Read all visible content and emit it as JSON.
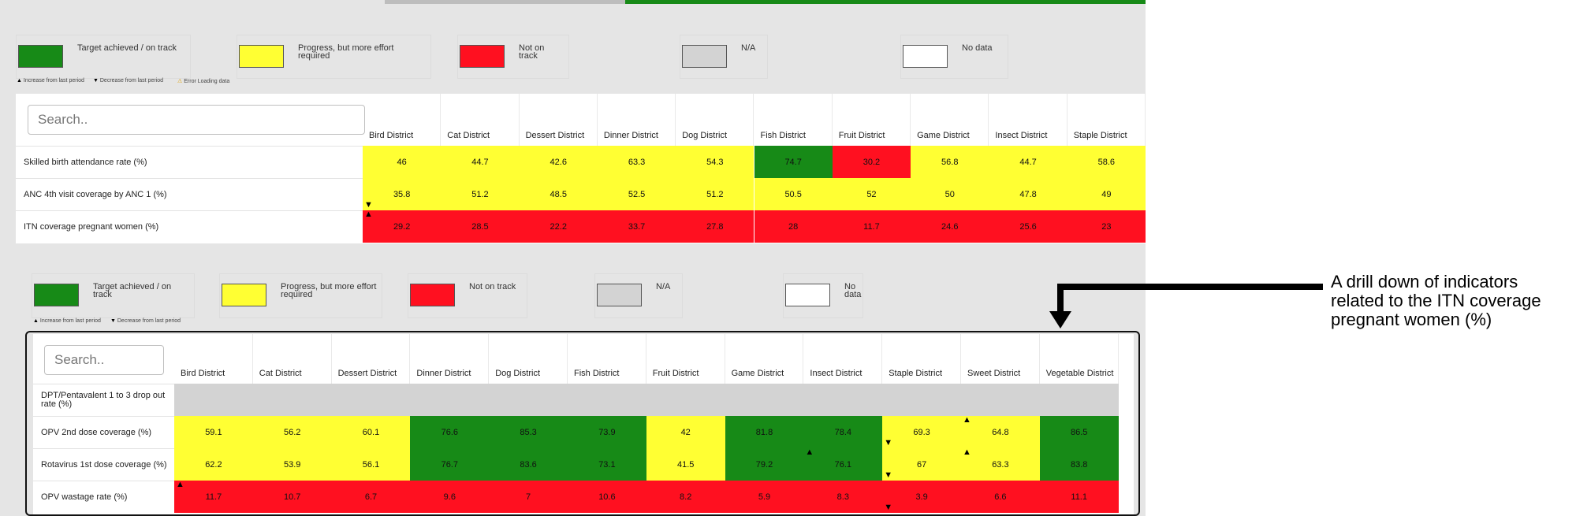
{
  "colors": {
    "green": "#178a17",
    "yellow": "#ffff33",
    "red": "#ff1020",
    "na": "#d3d3d3",
    "nodata": "#ffffff"
  },
  "legend1": {
    "items": [
      {
        "label": "Target achieved / on track",
        "color": "green"
      },
      {
        "label": "Progress, but more effort required",
        "color": "yellow"
      },
      {
        "label": "Not on track",
        "color": "red"
      },
      {
        "label": "N/A",
        "color": "na"
      },
      {
        "label": "No data",
        "color": "nodata"
      }
    ],
    "notes": [
      "Increase from last period",
      "Decrease from last period",
      "Error Loading data"
    ]
  },
  "table1": {
    "search_placeholder": "Search..",
    "columns": [
      "Bird District",
      "Cat District",
      "Dessert District",
      "Dinner District",
      "Dog District",
      "Fish District",
      "Fruit District",
      "Game District",
      "Insect District",
      "Staple District"
    ],
    "rows": [
      {
        "label": "Skilled birth attendance rate (%)",
        "values": [
          "46",
          "44.7",
          "42.6",
          "63.3",
          "54.3",
          "74.7",
          "30.2",
          "56.8",
          "44.7",
          "58.6"
        ],
        "colors": [
          "yellow",
          "yellow",
          "yellow",
          "yellow",
          "yellow",
          "green",
          "red",
          "yellow",
          "yellow",
          "yellow"
        ]
      },
      {
        "label": "ANC 4th visit coverage by ANC 1 (%)",
        "values": [
          "35.8",
          "51.2",
          "48.5",
          "52.5",
          "51.2",
          "50.5",
          "52",
          "50",
          "47.8",
          "49"
        ],
        "colors": [
          "yellow",
          "yellow",
          "yellow",
          "yellow",
          "yellow",
          "yellow",
          "yellow",
          "yellow",
          "yellow",
          "yellow"
        ]
      },
      {
        "label": "ITN coverage pregnant women (%)",
        "values": [
          "29.2",
          "28.5",
          "22.2",
          "33.7",
          "27.8",
          "28",
          "11.7",
          "24.6",
          "25.6",
          "23"
        ],
        "colors": [
          "red",
          "red",
          "red",
          "red",
          "red",
          "red",
          "red",
          "red",
          "red",
          "red"
        ]
      }
    ],
    "arrows": [
      {
        "row": 1,
        "col": 0,
        "dir": "▼",
        "pos": "bottom-left"
      },
      {
        "row": 2,
        "col": 0,
        "dir": "▲",
        "pos": "top-left"
      }
    ]
  },
  "legend2": {
    "items": [
      {
        "label": "Target achieved / on track",
        "color": "green"
      },
      {
        "label": "Progress, but more effort required",
        "color": "yellow"
      },
      {
        "label": "Not on track",
        "color": "red"
      },
      {
        "label": "N/A",
        "color": "na"
      },
      {
        "label": "No data",
        "color": "nodata"
      }
    ],
    "notes": [
      "Increase from last period",
      "Decrease from last period"
    ]
  },
  "table2": {
    "search_placeholder": "Search..",
    "columns": [
      "Bird District",
      "Cat District",
      "Dessert District",
      "Dinner District",
      "Dog District",
      "Fish District",
      "Fruit District",
      "Game District",
      "Insect District",
      "Staple District",
      "Sweet District",
      "Vegetable District"
    ],
    "rows": [
      {
        "label": "DPT/Pentavalent 1 to 3 drop out rate (%)",
        "values": [
          "",
          "",
          "",
          "",
          "",
          "",
          "",
          "",
          "",
          "",
          "",
          ""
        ],
        "colors": [
          "na",
          "na",
          "na",
          "na",
          "na",
          "na",
          "na",
          "na",
          "na",
          "na",
          "na",
          "na"
        ]
      },
      {
        "label": "OPV 2nd dose coverage (%)",
        "values": [
          "59.1",
          "56.2",
          "60.1",
          "76.6",
          "85.3",
          "73.9",
          "42",
          "81.8",
          "78.4",
          "69.3",
          "64.8",
          "86.5"
        ],
        "colors": [
          "yellow",
          "yellow",
          "yellow",
          "green",
          "green",
          "green",
          "yellow",
          "green",
          "green",
          "yellow",
          "yellow",
          "green"
        ]
      },
      {
        "label": "Rotavirus 1st dose coverage (%)",
        "values": [
          "62.2",
          "53.9",
          "56.1",
          "76.7",
          "83.6",
          "73.1",
          "41.5",
          "79.2",
          "76.1",
          "67",
          "63.3",
          "83.8"
        ],
        "colors": [
          "yellow",
          "yellow",
          "yellow",
          "green",
          "green",
          "green",
          "yellow",
          "green",
          "green",
          "yellow",
          "yellow",
          "green"
        ]
      },
      {
        "label": "OPV wastage rate (%)",
        "values": [
          "11.7",
          "10.7",
          "6.7",
          "9.6",
          "7",
          "10.6",
          "8.2",
          "5.9",
          "8.3",
          "3.9",
          "6.6",
          "11.1"
        ],
        "colors": [
          "red",
          "red",
          "red",
          "red",
          "red",
          "red",
          "red",
          "red",
          "red",
          "red",
          "red",
          "red"
        ]
      }
    ],
    "arrows": [
      {
        "row": 1,
        "col": 9,
        "dir": "▼",
        "pos": "bottom-left"
      },
      {
        "row": 1,
        "col": 10,
        "dir": "▲",
        "pos": "top-left"
      },
      {
        "row": 2,
        "col": 8,
        "dir": "▲",
        "pos": "top-left"
      },
      {
        "row": 2,
        "col": 9,
        "dir": "▼",
        "pos": "bottom-left"
      },
      {
        "row": 2,
        "col": 10,
        "dir": "▲",
        "pos": "top-left"
      },
      {
        "row": 3,
        "col": 0,
        "dir": "▲",
        "pos": "top-left"
      },
      {
        "row": 3,
        "col": 9,
        "dir": "▼",
        "pos": "bottom-left"
      }
    ]
  },
  "callout": {
    "text": "A drill down of indicators related to the ITN coverage pregnant women (%)"
  }
}
